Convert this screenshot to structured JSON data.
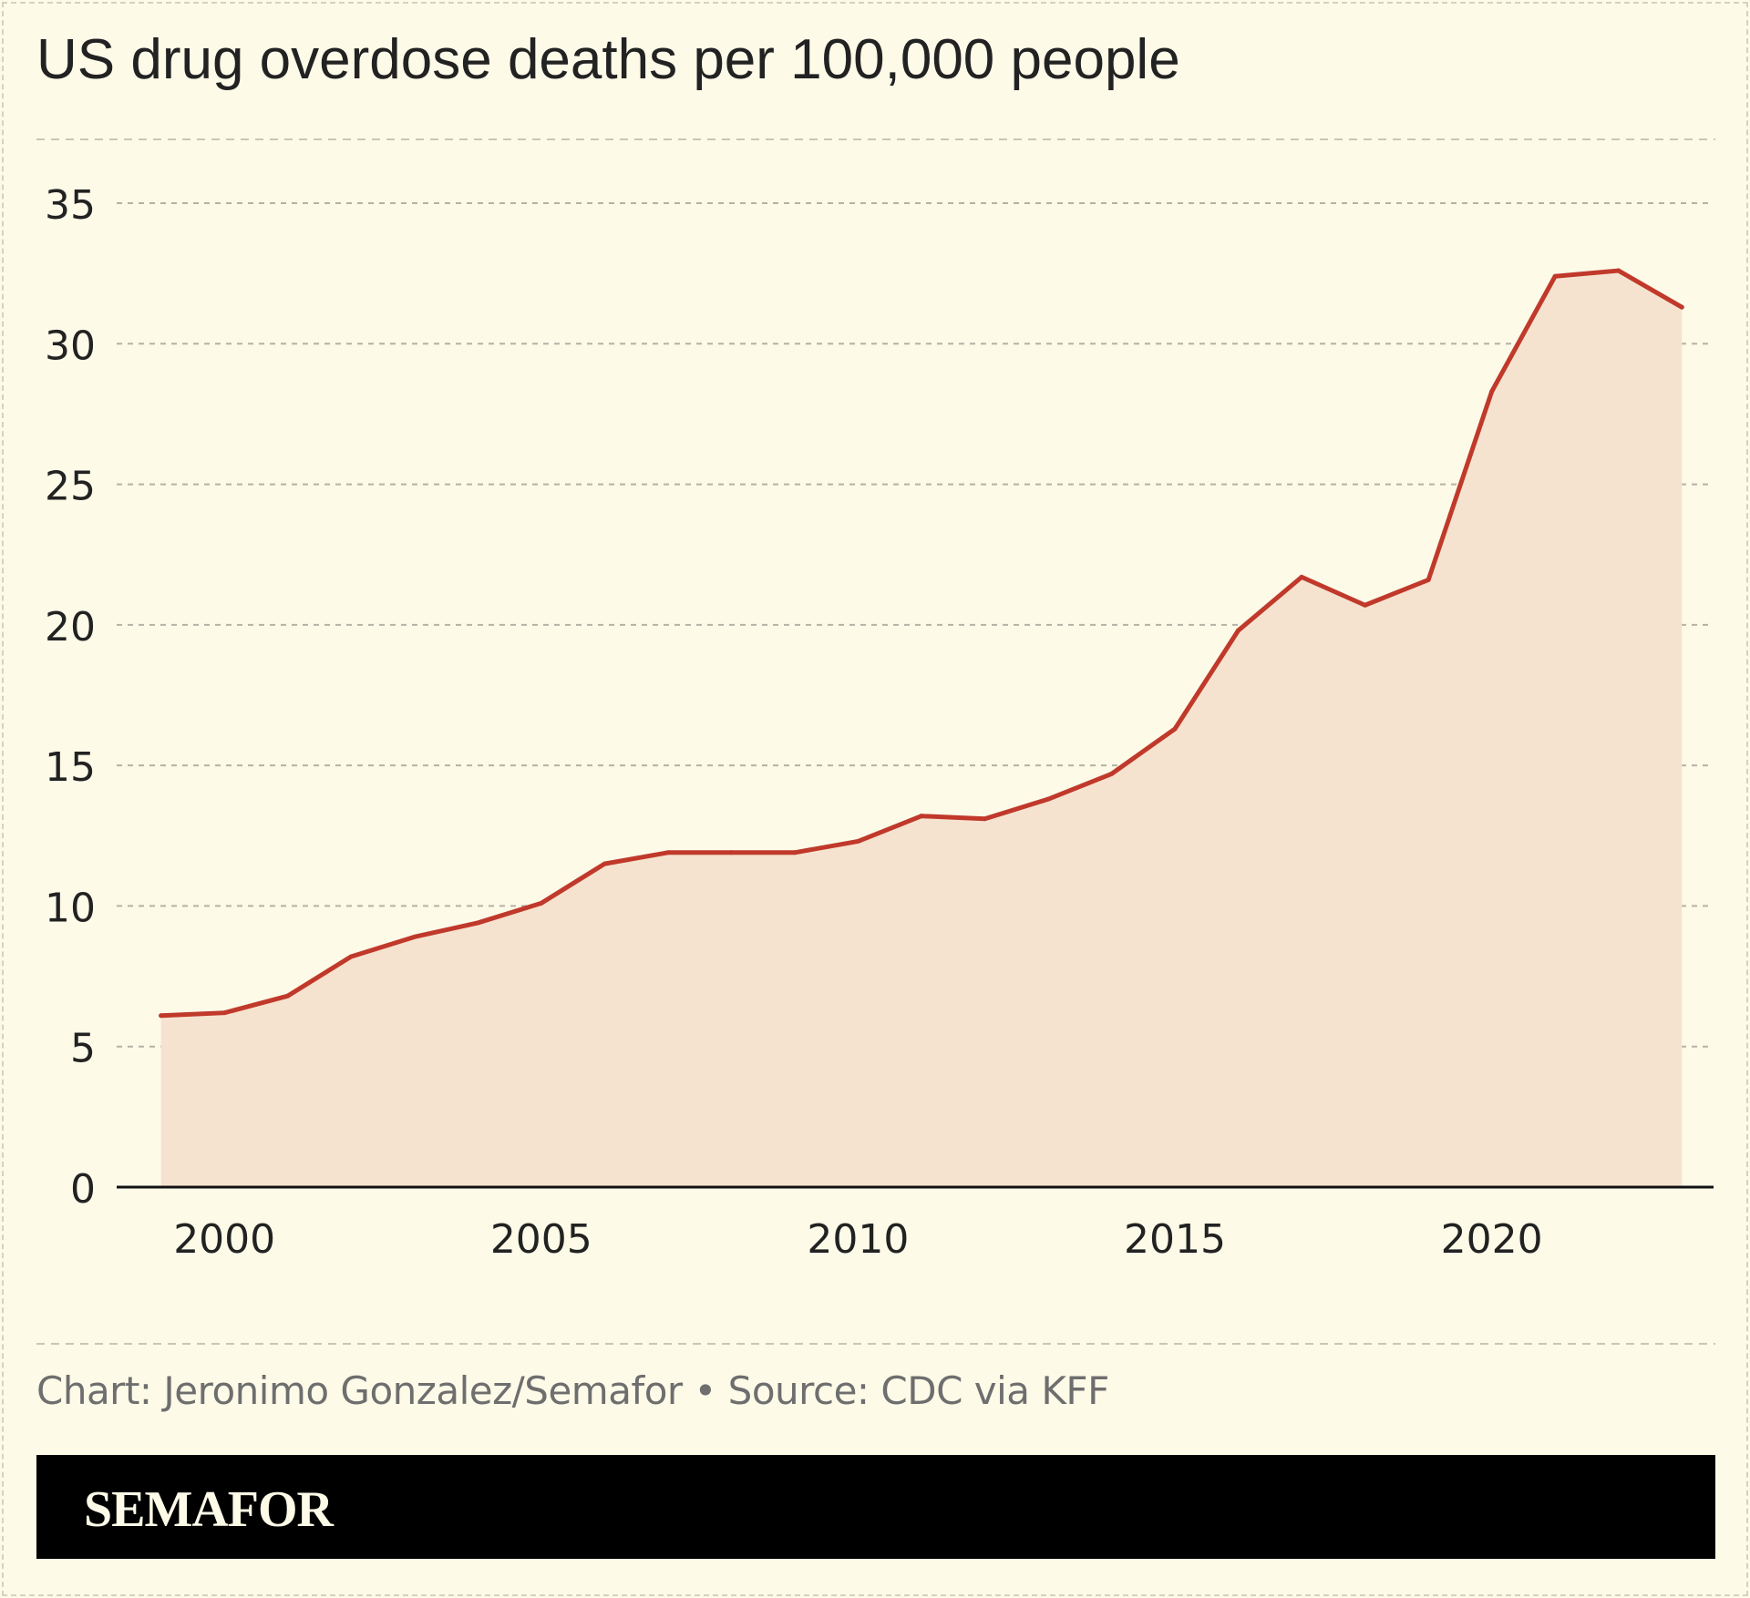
{
  "title": "US drug overdose deaths per 100,000 people",
  "source_text": "Chart: Jeronimo Gonzalez/Semafor • Source: CDC via KFF",
  "logo_text": "SEMAFOR",
  "colors": {
    "background": "#fdfae8",
    "line": "#c0392b",
    "area_fill": "#f5e3cf",
    "grid": "#b5b2a5",
    "text": "#222222"
  },
  "chart_data": {
    "type": "area",
    "x": [
      1999,
      2000,
      2001,
      2002,
      2003,
      2004,
      2005,
      2006,
      2007,
      2008,
      2009,
      2010,
      2011,
      2012,
      2013,
      2014,
      2015,
      2016,
      2017,
      2018,
      2019,
      2020,
      2021,
      2022,
      2023
    ],
    "series": [
      {
        "values": [
          6.1,
          6.2,
          6.8,
          8.2,
          8.9,
          9.4,
          10.1,
          11.5,
          11.9,
          11.9,
          11.9,
          12.3,
          13.2,
          13.1,
          13.8,
          14.7,
          16.3,
          19.8,
          21.7,
          20.7,
          21.6,
          28.3,
          32.4,
          32.6,
          31.3
        ]
      }
    ],
    "title": "US drug overdose deaths per 100,000 people",
    "xlabel": "",
    "ylabel": "",
    "ylim": [
      0,
      35
    ],
    "xlim": [
      1998.3,
      2023.5
    ],
    "yticks": [
      0,
      5,
      10,
      15,
      20,
      25,
      30,
      35
    ],
    "xticks": [
      2000,
      2005,
      2010,
      2015,
      2020
    ],
    "grid": true,
    "legend": "none"
  }
}
